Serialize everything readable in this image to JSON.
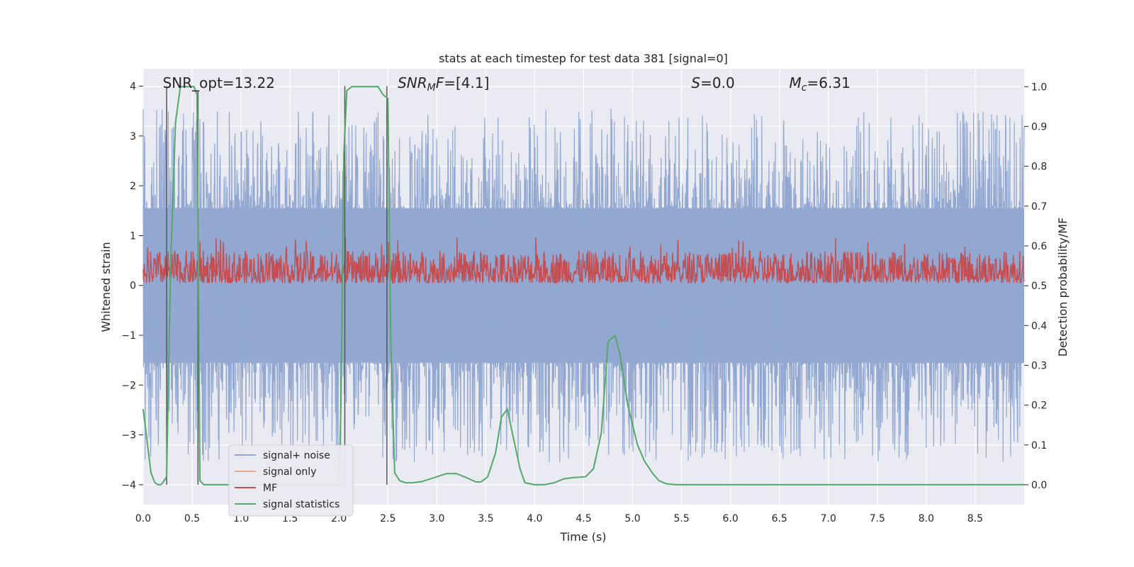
{
  "chart_data": {
    "type": "line",
    "title": "stats at each timestep for test data 381 [signal=0]",
    "xlabel": "Time (s)",
    "ylabel": "Whitened strain",
    "ylabel_right": "Detection probability/MF",
    "xlim": [
      0.0,
      9.0
    ],
    "ylim": [
      -4.4,
      4.35
    ],
    "ylim_right": [
      -0.05,
      1.045
    ],
    "x_ticks": [
      0.0,
      0.5,
      1.0,
      1.5,
      2.0,
      2.5,
      3.0,
      3.5,
      4.0,
      4.5,
      5.0,
      5.5,
      6.0,
      6.5,
      7.0,
      7.5,
      8.0,
      8.5
    ],
    "x_tick_labels": [
      "0.0",
      "0.5",
      "1.0",
      "1.5",
      "2.0",
      "2.5",
      "3.0",
      "3.5",
      "4.0",
      "4.5",
      "5.0",
      "5.5",
      "6.0",
      "6.5",
      "7.0",
      "7.5",
      "8.0",
      "8.5"
    ],
    "y_ticks": [
      4,
      3,
      2,
      1,
      0,
      -1,
      -2,
      -3,
      -4
    ],
    "y_tick_labels": [
      "4",
      "3",
      "2",
      "1",
      "0",
      "−1",
      "−2",
      "−3",
      "−4"
    ],
    "y_right_ticks": [
      1.0,
      0.9,
      0.8,
      0.7,
      0.6,
      0.5,
      0.4,
      0.3,
      0.2,
      0.1,
      0.0
    ],
    "y_right_tick_labels": [
      "1.0",
      "0.9",
      "0.8",
      "0.7",
      "0.6",
      "0.5",
      "0.4",
      "0.3",
      "0.2",
      "0.1",
      "0.0"
    ],
    "grid": true,
    "annotations": [
      {
        "text": "SNR_opt=13.22",
        "x": 0.2
      },
      {
        "text": "SNR_MF=[4.1]",
        "x": 2.6
      },
      {
        "text": "S=0.0",
        "x": 5.6
      },
      {
        "text": "M_c=6.31",
        "x": 6.6
      }
    ],
    "vlines": [
      {
        "x": 0.24,
        "y0": -4.0,
        "y1": 4.0
      },
      {
        "x": 0.56,
        "y0": -4.0,
        "y1": 3.9
      },
      {
        "x": 2.06,
        "y0": -4.0,
        "y1": 4.0
      },
      {
        "x": 2.49,
        "y0": -4.0,
        "y1": 4.0
      }
    ],
    "series": [
      {
        "name": "signal+ noise",
        "color": "#92a8d1",
        "amplitude_range": [
          -3.6,
          3.6
        ],
        "typical_abs": [
          0.0,
          1.7
        ]
      },
      {
        "name": "signal only",
        "color": "#e8a98a",
        "values": []
      },
      {
        "name": "MF",
        "color": "#c44e52",
        "range": [
          0.0,
          1.0
        ]
      },
      {
        "name": "signal statistics",
        "color": "#55a868",
        "axis": "right",
        "x": [
          0.0,
          0.08,
          0.12,
          0.15,
          0.18,
          0.2,
          0.24,
          0.28,
          0.33,
          0.38,
          0.42,
          0.48,
          0.52,
          0.55,
          0.58,
          0.62,
          0.68,
          0.75,
          1.0,
          1.5,
          2.0,
          2.02,
          2.05,
          2.08,
          2.13,
          2.2,
          2.3,
          2.4,
          2.45,
          2.5,
          2.53,
          2.57,
          2.62,
          2.68,
          2.75,
          2.85,
          3.0,
          3.1,
          3.2,
          3.3,
          3.4,
          3.45,
          3.52,
          3.6,
          3.66,
          3.72,
          3.78,
          3.85,
          3.9,
          4.0,
          4.1,
          4.2,
          4.3,
          4.4,
          4.52,
          4.6,
          4.68,
          4.75,
          4.82,
          4.87,
          4.95,
          5.05,
          5.12,
          5.2,
          5.27,
          5.35,
          5.45,
          5.6,
          6.0,
          7.0,
          8.0,
          9.0
        ],
        "y": [
          0.19,
          0.03,
          0.005,
          0.0,
          0.0,
          0.005,
          0.02,
          0.55,
          0.91,
          1.0,
          1.0,
          1.0,
          1.0,
          0.98,
          0.01,
          0.0,
          0.0,
          0.0,
          0.0,
          0.0,
          0.0,
          0.2,
          0.83,
          0.99,
          1.0,
          1.0,
          1.0,
          1.0,
          0.98,
          0.97,
          0.35,
          0.03,
          0.01,
          0.005,
          0.005,
          0.008,
          0.02,
          0.028,
          0.028,
          0.018,
          0.007,
          0.007,
          0.02,
          0.08,
          0.17,
          0.19,
          0.12,
          0.04,
          0.005,
          0.0,
          0.0,
          0.005,
          0.015,
          0.018,
          0.02,
          0.04,
          0.13,
          0.36,
          0.375,
          0.33,
          0.2,
          0.1,
          0.06,
          0.03,
          0.01,
          0.002,
          0.0,
          0.0,
          0.0,
          0.0,
          0.0,
          0.0
        ]
      }
    ],
    "legend": {
      "placement": "lower-left",
      "entries": [
        "signal+ noise",
        "signal only",
        "MF",
        "signal statistics"
      ]
    }
  }
}
